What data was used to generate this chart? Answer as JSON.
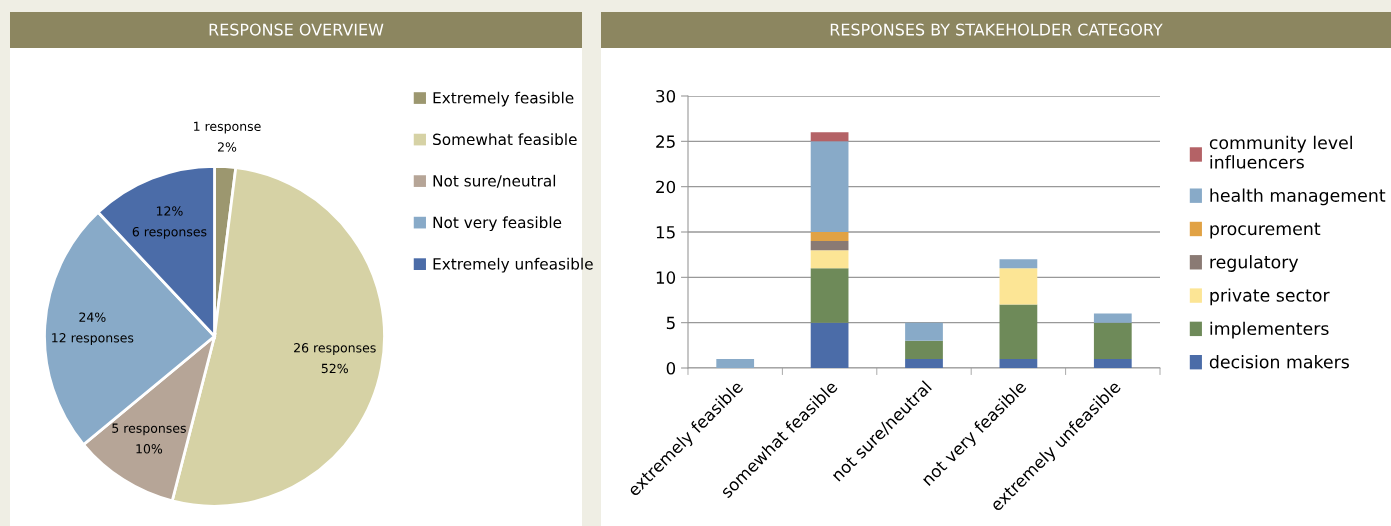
{
  "chart_data": [
    {
      "type": "pie",
      "title": "RESPONSE OVERVIEW",
      "categories": [
        "Extremely feasible",
        "Somewhat feasible",
        "Not sure/neutral",
        "Not very feasible",
        "Extremely unfeasible"
      ],
      "values": [
        1,
        26,
        5,
        12,
        6
      ],
      "colors": [
        "#9c976f",
        "#d6d2a5",
        "#b6a597",
        "#88aac8",
        "#4b6ca8"
      ],
      "value_labels": [
        "1 response\n2%",
        "26 responses\n52%",
        "5 responses\n10%",
        "24%\n12 responses",
        "12%\n6 responses"
      ],
      "legend": "right"
    },
    {
      "type": "bar",
      "title": "RESPONSES BY STAKEHOLDER CATEGORY",
      "categories": [
        "extremely feasible",
        "somewhat feasible",
        "not sure/neutral",
        "not very feasible",
        "extremely unfeasible"
      ],
      "stacked": true,
      "series": [
        {
          "name": "decision makers",
          "color": "#4b6ca8",
          "values": [
            0,
            5,
            1,
            1,
            1
          ]
        },
        {
          "name": "implementers",
          "color": "#6e8a59",
          "values": [
            0,
            6,
            2,
            6,
            4
          ]
        },
        {
          "name": "private sector",
          "color": "#fce595",
          "values": [
            0,
            2,
            0,
            4,
            0
          ]
        },
        {
          "name": "regulatory",
          "color": "#8a7a74",
          "values": [
            0,
            1,
            0,
            0,
            0
          ]
        },
        {
          "name": "procurement",
          "color": "#e1a244",
          "values": [
            0,
            1,
            0,
            0,
            0
          ]
        },
        {
          "name": "health management",
          "color": "#88aac8",
          "values": [
            1,
            10,
            2,
            1,
            1
          ]
        },
        {
          "name": "community level influencers",
          "color": "#b46266",
          "values": [
            0,
            1,
            0,
            0,
            0
          ]
        }
      ],
      "ylim": [
        0,
        30
      ],
      "yticks": [
        0,
        5,
        10,
        15,
        20,
        25,
        30
      ],
      "grid": "y",
      "legend": "right"
    }
  ]
}
